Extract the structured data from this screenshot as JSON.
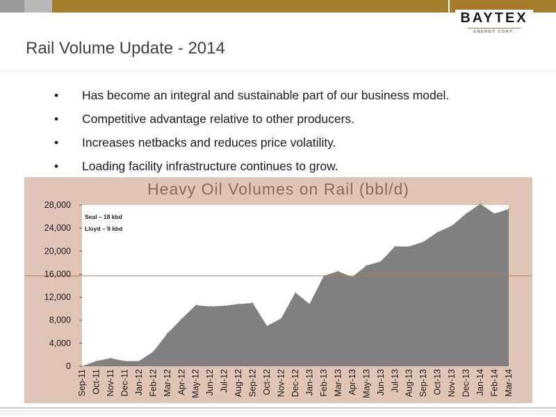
{
  "logo": {
    "main": "BAYTEX",
    "sub": "ENERGY CORP."
  },
  "slide": {
    "title": "Rail Volume Update - 2014"
  },
  "bullets": [
    "Has become an integral and sustainable part of our business model.",
    "Competitive advantage relative to other producers.",
    "Increases netbacks and reduces price volatility.",
    "Loading facility infrastructure continues to grow."
  ],
  "bullet_symbol": "•",
  "colors": {
    "gold": "#a67d2c",
    "chart_bg": "#e0c5b7",
    "area": "#808080",
    "reference_line": "#b07a5a"
  },
  "chart_data": {
    "type": "area",
    "title": "Heavy Oil Volumes on Rail (bbl/d)",
    "xlabel": "",
    "ylabel": "",
    "categories": [
      "Sep-11",
      "Oct-11",
      "Nov-11",
      "Dec-11",
      "Jan-12",
      "Feb-12",
      "Mar-12",
      "Apr-12",
      "May-12",
      "Jun-12",
      "Jul-12",
      "Aug-12",
      "Sep-12",
      "Oct-12",
      "Nov-12",
      "Dec-12",
      "Jan-13",
      "Feb-13",
      "Mar-13",
      "Apr-13",
      "May-13",
      "Jun-13",
      "Jul-13",
      "Aug-13",
      "Sep-13",
      "Oct-13",
      "Nov-13",
      "Dec-13",
      "Jan-14",
      "Feb-14",
      "Mar-14"
    ],
    "values": [
      0,
      900,
      1400,
      900,
      900,
      2500,
      5700,
      8200,
      10600,
      10400,
      10500,
      10800,
      11000,
      7000,
      8300,
      12800,
      10800,
      15700,
      16500,
      15500,
      17500,
      18200,
      20800,
      20800,
      21600,
      23300,
      24400,
      26500,
      28200,
      26500,
      27300
    ],
    "ylim": [
      0,
      28000
    ],
    "yticks": [
      0,
      4000,
      8000,
      12000,
      16000,
      20000,
      24000,
      28000
    ],
    "ytick_labels": [
      "0",
      "4,000",
      "8,000",
      "12,000",
      "16,000",
      "20,000",
      "24,000",
      "28,000"
    ],
    "reference_line": 15700,
    "grid": false,
    "annotations": [
      "Seal – 18 kbd",
      "Lloyd – 9 kbd"
    ]
  }
}
